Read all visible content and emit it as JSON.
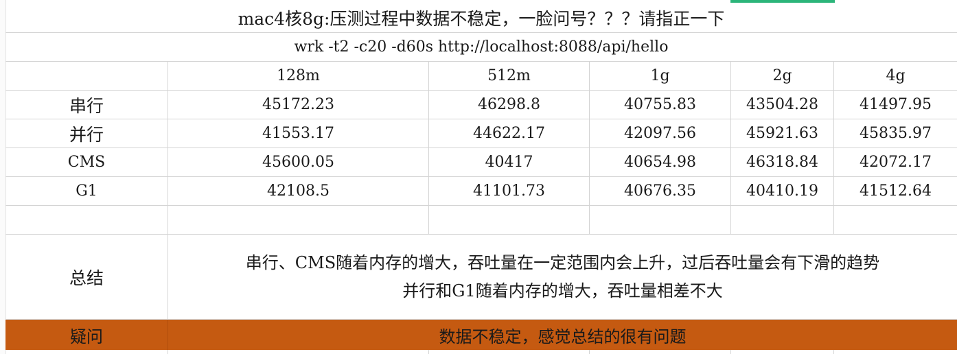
{
  "sheet": {
    "title": "mac4核8g:压测过程中数据不稳定，一脸问号？？？请指正一下",
    "command": "wrk -t2 -c20 -d60s http://localhost:8088/api/hello",
    "header": [
      "",
      "128m",
      "512m",
      "1g",
      "2g",
      "4g"
    ],
    "rows": [
      {
        "label": "串行",
        "values": [
          "45172.23",
          "46298.8",
          "40755.83",
          "43504.28",
          "41497.95"
        ]
      },
      {
        "label": "并行",
        "values": [
          "41553.17",
          "44622.17",
          "42097.56",
          "45921.63",
          "45835.97"
        ]
      },
      {
        "label": "CMS",
        "values": [
          "45600.05",
          "40417",
          "40654.98",
          "46318.84",
          "42072.17"
        ]
      },
      {
        "label": "G1",
        "values": [
          "42108.5",
          "41101.73",
          "40676.35",
          "40410.19",
          "41512.64"
        ]
      }
    ],
    "summary": {
      "label": "总结",
      "line1": "串行、CMS随着内存的增大，吞吐量在一定范围内会上升，过后吞吐量会有下滑的趋势",
      "line2": "并行和G1随着内存的增大，吞吐量相差不大"
    },
    "question": {
      "label": "疑问",
      "text": "数据不稳定，感觉总结的很有问题"
    }
  },
  "colors": {
    "question_row_bg": "#c55a11",
    "accent_tab": "#2bb57a",
    "grid_line": "#d4d4d4"
  }
}
